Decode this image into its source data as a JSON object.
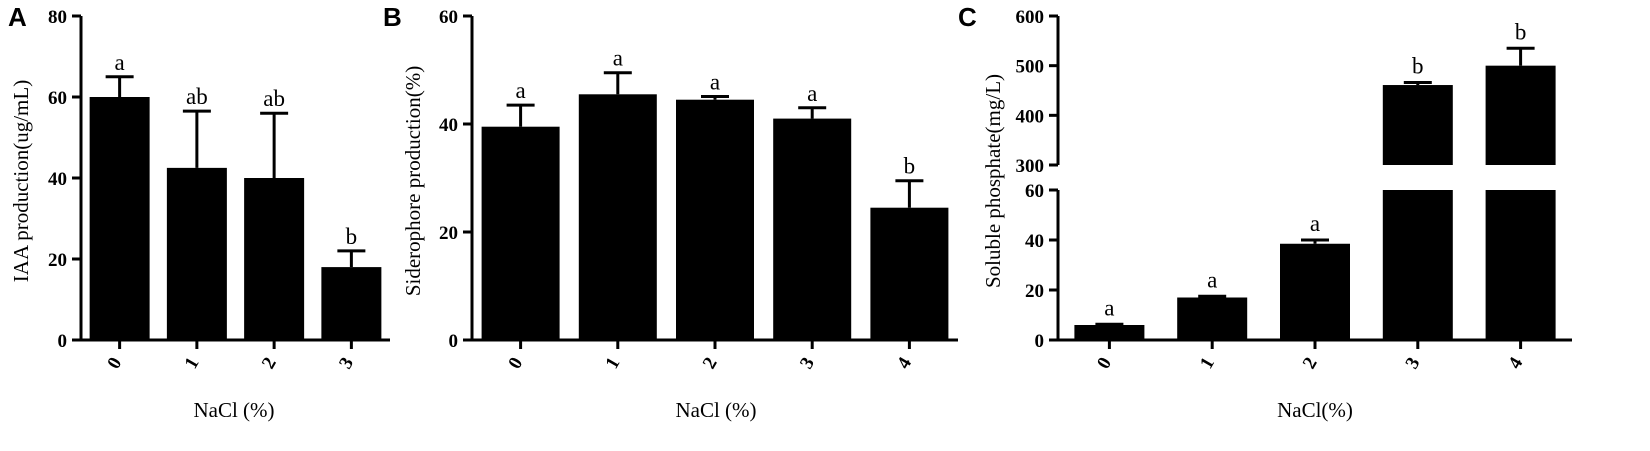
{
  "chart_data": [
    {
      "type": "bar",
      "panel": "A",
      "categories": [
        "0",
        "1",
        "2",
        "3"
      ],
      "values": [
        60,
        42.5,
        40,
        18
      ],
      "errors": [
        5,
        14,
        16,
        4
      ],
      "significance": [
        "a",
        "ab",
        "ab",
        "b"
      ],
      "yticks": [
        "0",
        "20",
        "40",
        "60",
        "80"
      ],
      "ylim": [
        0,
        80
      ],
      "ylabel": "IAA production(ug/mL)",
      "xlabel": "NaCl (%)"
    },
    {
      "type": "bar",
      "panel": "B",
      "categories": [
        "0",
        "1",
        "2",
        "3",
        "4"
      ],
      "values": [
        39.5,
        45.5,
        44.5,
        41,
        24.5
      ],
      "errors": [
        4,
        4,
        0.6,
        2,
        5
      ],
      "significance": [
        "a",
        "a",
        "a",
        "a",
        "b"
      ],
      "yticks": [
        "0",
        "20",
        "40",
        "60"
      ],
      "ylim": [
        0,
        60
      ],
      "ylabel": "Siderophore production(%)",
      "xlabel": "NaCl (%)"
    },
    {
      "type": "bar",
      "panel": "C",
      "categories": [
        "0",
        "1",
        "2",
        "3",
        "4"
      ],
      "values": [
        6,
        17,
        38.5,
        461,
        500
      ],
      "errors": [
        0.3,
        0.5,
        1.5,
        5,
        35
      ],
      "significance": [
        "a",
        "a",
        "a",
        "b",
        "b"
      ],
      "yticks_lower": [
        "0",
        "20",
        "40",
        "60"
      ],
      "yticks_upper": [
        "300",
        "400",
        "500",
        "600"
      ],
      "ylim_lower": [
        0,
        60
      ],
      "ylim_upper": [
        300,
        600
      ],
      "broken_axis": true,
      "ylabel": "Soluble phosphate(mg/L)",
      "xlabel": "NaCl(%)"
    }
  ]
}
